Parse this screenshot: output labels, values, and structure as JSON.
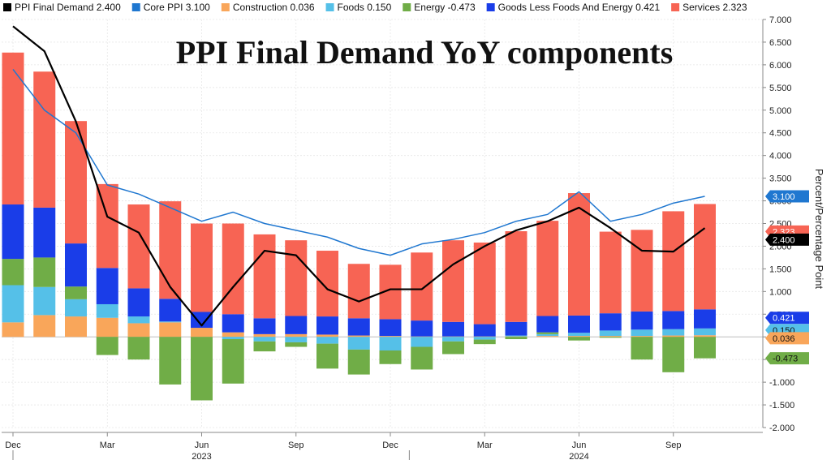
{
  "chart_data": {
    "type": "bar",
    "title": "PPI Final Demand YoY components",
    "ylabel": "Percent/Percentage Point",
    "xlabel": "",
    "ylim": [
      -2.0,
      7.0
    ],
    "yticks": [
      "7.000",
      "6.500",
      "6.000",
      "5.500",
      "5.000",
      "4.500",
      "4.000",
      "3.500",
      "3.000",
      "2.500",
      "2.000",
      "1.500",
      "1.000",
      "0.500",
      "0.000",
      "-0.500",
      "-1.000",
      "-1.500",
      "-2.000"
    ],
    "ytick_values": [
      7,
      6.5,
      6,
      5.5,
      5,
      4.5,
      4,
      3.5,
      3,
      2.5,
      2,
      1.5,
      1,
      0.5,
      0,
      -0.5,
      -1,
      -1.5,
      -2
    ],
    "x_tick_labels": [
      {
        "index": 0,
        "label": "Dec"
      },
      {
        "index": 3,
        "label": "Mar"
      },
      {
        "index": 6,
        "label": "Jun"
      },
      {
        "index": 9,
        "label": "Sep"
      },
      {
        "index": 12,
        "label": "Dec"
      },
      {
        "index": 15,
        "label": "Mar"
      },
      {
        "index": 18,
        "label": "Jun"
      },
      {
        "index": 21,
        "label": "Sep"
      }
    ],
    "year_labels": [
      {
        "index": 6,
        "label": "2023"
      },
      {
        "index": 18,
        "label": "2024"
      }
    ],
    "categories": [
      "Dec 2022",
      "Jan 2023",
      "Feb 2023",
      "Mar 2023",
      "Apr 2023",
      "May 2023",
      "Jun 2023",
      "Jul 2023",
      "Aug 2023",
      "Sep 2023",
      "Oct 2023",
      "Nov 2023",
      "Dec 2023",
      "Jan 2024",
      "Feb 2024",
      "Mar 2024",
      "Apr 2024",
      "May 2024",
      "Jun 2024",
      "Jul 2024",
      "Aug 2024",
      "Sep 2024",
      "Oct 2024"
    ],
    "bar_series": [
      {
        "name": "Construction",
        "legend_value": "0.036",
        "color": "#f9a65a",
        "values": [
          0.32,
          0.48,
          0.45,
          0.42,
          0.3,
          0.32,
          0.2,
          0.1,
          0.06,
          0.06,
          0.05,
          0.03,
          0.02,
          0.01,
          0.01,
          0.01,
          0.01,
          0.02,
          0.02,
          0.02,
          0.02,
          0.03,
          0.036
        ]
      },
      {
        "name": "Foods",
        "legend_value": "0.150",
        "color": "#55c0e8",
        "values": [
          0.82,
          0.62,
          0.38,
          0.3,
          0.15,
          0.02,
          0.0,
          -0.05,
          -0.1,
          -0.12,
          -0.15,
          -0.28,
          -0.3,
          -0.22,
          -0.1,
          -0.06,
          0.02,
          0.04,
          0.07,
          0.12,
          0.14,
          0.14,
          0.15
        ]
      },
      {
        "name": "Energy",
        "legend_value": "-0.473",
        "color": "#70ad47",
        "values": [
          0.58,
          0.65,
          0.28,
          -0.4,
          -0.5,
          -1.05,
          -1.4,
          -0.98,
          -0.22,
          -0.1,
          -0.55,
          -0.55,
          -0.3,
          -0.5,
          -0.28,
          -0.1,
          -0.05,
          0.04,
          -0.08,
          -0.02,
          -0.5,
          -0.78,
          -0.473
        ]
      },
      {
        "name": "Goods Less Foods And Energy",
        "legend_value": "0.421",
        "color": "#1a3de8",
        "values": [
          1.2,
          1.1,
          0.95,
          0.8,
          0.62,
          0.5,
          0.35,
          0.4,
          0.35,
          0.4,
          0.4,
          0.38,
          0.37,
          0.35,
          0.32,
          0.27,
          0.3,
          0.36,
          0.38,
          0.38,
          0.4,
          0.4,
          0.421
        ]
      },
      {
        "name": "Services",
        "legend_value": "2.323",
        "color": "#f76454",
        "values": [
          3.35,
          3.0,
          2.7,
          1.85,
          1.85,
          2.15,
          1.95,
          2.0,
          1.85,
          1.67,
          1.45,
          1.2,
          1.2,
          1.5,
          1.8,
          1.8,
          2.0,
          2.1,
          2.7,
          1.8,
          1.8,
          2.2,
          2.323
        ]
      }
    ],
    "line_series": [
      {
        "name": "PPI Final Demand",
        "legend_value": "2.400",
        "color": "#000000",
        "values": [
          6.85,
          6.3,
          4.75,
          2.65,
          2.3,
          1.1,
          0.25,
          1.1,
          1.9,
          1.8,
          1.05,
          0.78,
          1.05,
          1.05,
          1.6,
          2.0,
          2.35,
          2.55,
          2.85,
          2.4,
          1.9,
          1.88,
          2.4
        ]
      },
      {
        "name": "Core PPI",
        "legend_value": "3.100",
        "color": "#1f77d0",
        "values": [
          5.9,
          5.0,
          4.5,
          3.35,
          3.15,
          2.85,
          2.55,
          2.75,
          2.5,
          2.35,
          2.2,
          1.95,
          1.8,
          2.05,
          2.15,
          2.3,
          2.55,
          2.7,
          3.2,
          2.55,
          2.7,
          2.95,
          3.1
        ]
      }
    ],
    "legend_order": [
      {
        "name": "PPI Final Demand",
        "value": "2.400",
        "color": "#000000"
      },
      {
        "name": "Core PPI",
        "value": "3.100",
        "color": "#1f77d0"
      },
      {
        "name": "Construction",
        "value": "0.036",
        "color": "#f9a65a"
      },
      {
        "name": "Foods",
        "value": "0.150",
        "color": "#55c0e8"
      },
      {
        "name": "Energy",
        "value": "-0.473",
        "color": "#70ad47"
      },
      {
        "name": "Goods Less Foods And Energy",
        "value": "0.421",
        "color": "#1a3de8"
      },
      {
        "name": "Services",
        "value": "2.323",
        "color": "#f76454"
      }
    ],
    "right_badges": [
      {
        "label": "3.100",
        "value": 3.1,
        "color": "#1f77d0",
        "dark_text": false
      },
      {
        "label": "2.323",
        "value": 2.323,
        "color": "#f76454",
        "dark_text": false
      },
      {
        "label": "2.400",
        "value": 2.4,
        "color": "#000000",
        "dark_text": false
      },
      {
        "label": "0.421",
        "value": 0.421,
        "color": "#1a3de8",
        "dark_text": false
      },
      {
        "label": "0.150",
        "value": 0.15,
        "color": "#55c0e8",
        "dark_text": true
      },
      {
        "label": "0.036",
        "value": 0.036,
        "color": "#f9a65a",
        "dark_text": true
      },
      {
        "label": "-0.473",
        "value": -0.473,
        "color": "#70ad47",
        "dark_text": true
      }
    ],
    "grid": true,
    "legend_position": "top"
  }
}
